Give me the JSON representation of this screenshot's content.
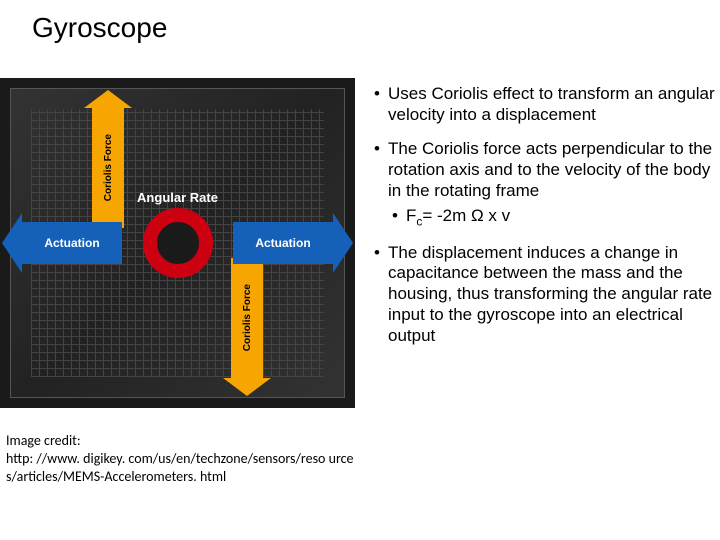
{
  "title": "Gyroscope",
  "figure": {
    "center_label": "Angular Rate",
    "actuation_left": "Actuation",
    "actuation_right": "Actuation",
    "coriolis_up": "Coriolis Force",
    "coriolis_down": "Coriolis Force",
    "colors": {
      "background": "#1a1a1a",
      "actuation_arrow": "#1560b8",
      "coriolis_arrow": "#f7a500",
      "ring": "#cc0010"
    }
  },
  "credit": {
    "label": "Image credit:",
    "url": "http: //www. digikey. com/us/en/techzone/sensors/reso urces/articles/MEMS-Accelerometers. html"
  },
  "bullets": [
    {
      "text": "Uses Coriolis effect to transform an angular velocity into a displacement"
    },
    {
      "text": "The Coriolis force acts perpendicular to the rotation axis and to the velocity of the body in the rotating frame",
      "sub": [
        {
          "html": "F<sub>c</sub>= -2m Ω x v"
        }
      ]
    },
    {
      "text": "The displacement induces a change in capacitance between the mass and the housing, thus transforming the angular rate input to the gyroscope into an electrical output"
    }
  ]
}
